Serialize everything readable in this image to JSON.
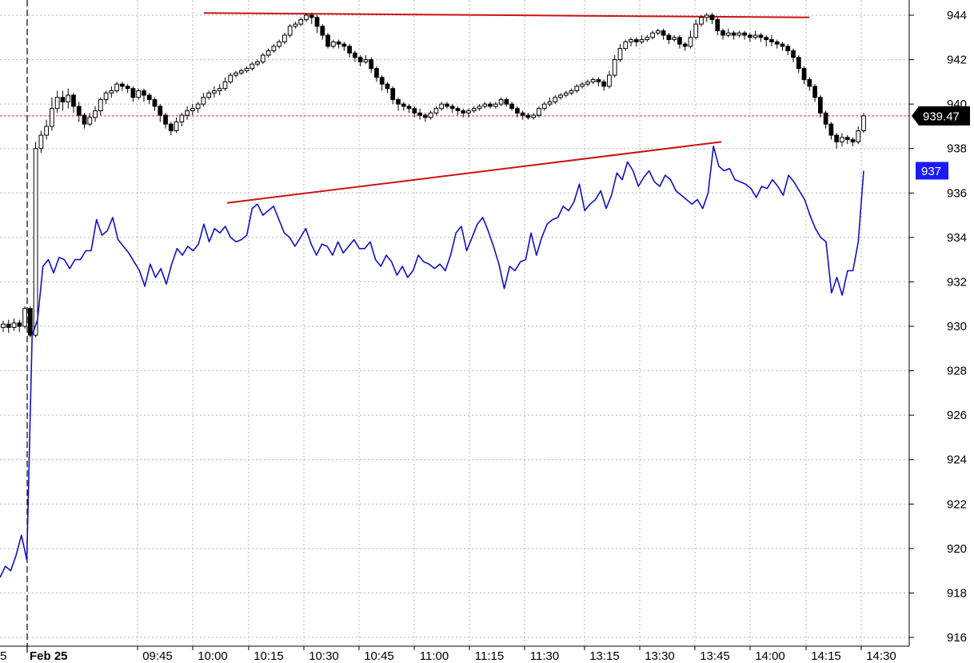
{
  "chart_data": {
    "type": "line",
    "y_axis": {
      "ticks": [
        "944",
        "942",
        "940",
        "938",
        "936",
        "934",
        "932",
        "930",
        "928",
        "926",
        "924",
        "922",
        "920",
        "918",
        "916"
      ],
      "range": [
        915.2,
        945.2
      ]
    },
    "x_axis": {
      "partial_label": "5",
      "date_label": "Feb 25",
      "ticks": [
        "09:45",
        "10:00",
        "10:15",
        "10:30",
        "10:45",
        "11:00",
        "11:15",
        "11:30",
        "13:15",
        "13:30",
        "13:45",
        "14:00",
        "14:15",
        "14:30"
      ]
    },
    "last_price_label": "939.47",
    "last_price": 939.47,
    "series_value_label": "937",
    "colors": {
      "candles": "#000000",
      "blue_series": "#1010c8",
      "trendlines": "#d01010",
      "price_line": "#e03030",
      "blue_badge": "#1a1aff",
      "price_badge": "#000000"
    },
    "trendlines": [
      {
        "start": [
          10.0,
          944.1
        ],
        "end": [
          24.5,
          943.9
        ]
      },
      {
        "start": [
          10.1,
          935.55
        ],
        "end": [
          20.0,
          938.3
        ]
      }
    ],
    "candles": [
      [
        929.95,
        930.1,
        929.75,
        930.25
      ],
      [
        930.1,
        929.95,
        929.7,
        930.3
      ],
      [
        929.95,
        930.15,
        929.8,
        930.35
      ],
      [
        930.15,
        930.0,
        929.75,
        930.3
      ],
      [
        930.0,
        930.8,
        929.9,
        930.9
      ],
      [
        930.8,
        929.6,
        929.5,
        930.9
      ],
      [
        929.6,
        938.0,
        929.5,
        938.3
      ],
      [
        938.0,
        938.6,
        937.8,
        938.8
      ],
      [
        938.6,
        939.0,
        938.4,
        939.3
      ],
      [
        939.0,
        939.8,
        938.8,
        940.3
      ],
      [
        939.8,
        940.3,
        939.6,
        940.6
      ],
      [
        940.3,
        940.1,
        939.7,
        940.6
      ],
      [
        940.1,
        940.4,
        939.8,
        940.7
      ],
      [
        940.4,
        939.9,
        939.6,
        940.5
      ],
      [
        939.9,
        939.5,
        939.2,
        940.1
      ],
      [
        939.5,
        939.1,
        938.9,
        939.6
      ],
      [
        939.1,
        939.4,
        939.0,
        939.6
      ],
      [
        939.4,
        939.7,
        939.2,
        939.9
      ],
      [
        939.7,
        940.2,
        939.5,
        940.3
      ],
      [
        940.2,
        940.5,
        940.0,
        940.6
      ],
      [
        940.5,
        940.6,
        940.3,
        940.8
      ],
      [
        940.6,
        940.9,
        940.5,
        941.0
      ],
      [
        940.9,
        940.8,
        940.6,
        941.0
      ],
      [
        940.8,
        940.7,
        940.5,
        940.9
      ],
      [
        940.7,
        940.3,
        940.1,
        940.8
      ],
      [
        940.3,
        940.6,
        940.2,
        940.7
      ],
      [
        940.6,
        940.4,
        940.1,
        940.7
      ],
      [
        940.4,
        940.2,
        940.0,
        940.5
      ],
      [
        940.2,
        939.9,
        939.7,
        940.3
      ],
      [
        939.9,
        939.5,
        939.2,
        940.0
      ],
      [
        939.5,
        939.1,
        938.9,
        939.6
      ],
      [
        939.1,
        938.8,
        938.6,
        939.2
      ],
      [
        938.8,
        939.2,
        938.7,
        939.4
      ],
      [
        939.2,
        939.5,
        939.0,
        939.6
      ],
      [
        939.5,
        939.7,
        939.3,
        939.9
      ],
      [
        939.7,
        939.8,
        939.5,
        940.0
      ],
      [
        939.8,
        940.0,
        939.6,
        940.1
      ],
      [
        940.0,
        940.3,
        939.9,
        940.5
      ],
      [
        940.3,
        940.5,
        940.2,
        940.6
      ],
      [
        940.5,
        940.6,
        940.3,
        940.8
      ],
      [
        940.6,
        940.7,
        940.4,
        940.9
      ],
      [
        940.7,
        941.0,
        940.6,
        941.2
      ],
      [
        941.0,
        941.3,
        940.9,
        941.4
      ],
      [
        941.3,
        941.4,
        941.2,
        941.5
      ],
      [
        941.4,
        941.5,
        941.3,
        941.6
      ],
      [
        941.5,
        941.6,
        941.4,
        941.7
      ],
      [
        941.6,
        941.8,
        941.5,
        941.9
      ],
      [
        941.8,
        941.9,
        941.7,
        942.0
      ],
      [
        941.9,
        942.2,
        941.8,
        942.3
      ],
      [
        942.2,
        942.4,
        942.1,
        942.5
      ],
      [
        942.4,
        942.6,
        942.3,
        942.7
      ],
      [
        942.6,
        942.8,
        942.5,
        942.9
      ],
      [
        942.8,
        943.1,
        942.7,
        943.2
      ],
      [
        943.1,
        943.5,
        943.0,
        943.6
      ],
      [
        943.5,
        943.6,
        943.4,
        943.7
      ],
      [
        943.6,
        943.8,
        943.5,
        943.9
      ],
      [
        943.8,
        944.0,
        943.7,
        944.1
      ],
      [
        944.0,
        943.9,
        943.6,
        944.1
      ],
      [
        943.9,
        943.5,
        943.2,
        944.0
      ],
      [
        943.5,
        943.1,
        942.9,
        943.6
      ],
      [
        943.1,
        942.6,
        942.5,
        943.2
      ],
      [
        942.6,
        942.8,
        942.5,
        942.9
      ],
      [
        942.8,
        942.7,
        942.5,
        942.9
      ],
      [
        942.7,
        942.6,
        942.4,
        942.8
      ],
      [
        942.6,
        942.3,
        942.1,
        942.7
      ],
      [
        942.3,
        942.1,
        941.9,
        942.4
      ],
      [
        942.1,
        941.9,
        941.7,
        942.2
      ],
      [
        941.9,
        942.0,
        941.8,
        942.2
      ],
      [
        942.0,
        941.6,
        941.4,
        942.1
      ],
      [
        941.6,
        941.2,
        941.0,
        941.7
      ],
      [
        941.2,
        940.9,
        940.6,
        941.3
      ],
      [
        940.9,
        940.7,
        940.5,
        941.0
      ],
      [
        940.7,
        940.2,
        940.0,
        940.8
      ],
      [
        940.2,
        940.0,
        939.7,
        940.3
      ],
      [
        940.0,
        939.9,
        939.7,
        940.1
      ],
      [
        939.9,
        939.8,
        939.6,
        940.0
      ],
      [
        939.8,
        939.6,
        939.4,
        939.9
      ],
      [
        939.6,
        939.5,
        939.3,
        939.8
      ],
      [
        939.5,
        939.4,
        939.2,
        939.6
      ],
      [
        939.4,
        939.6,
        939.3,
        939.7
      ],
      [
        939.6,
        939.8,
        939.5,
        939.9
      ],
      [
        939.8,
        940.0,
        939.7,
        940.1
      ],
      [
        940.0,
        939.9,
        939.8,
        940.1
      ],
      [
        939.9,
        939.8,
        939.6,
        940.0
      ],
      [
        939.8,
        939.7,
        939.5,
        939.9
      ],
      [
        939.7,
        939.6,
        939.4,
        939.8
      ],
      [
        939.6,
        939.7,
        939.4,
        939.8
      ],
      [
        939.7,
        939.8,
        939.6,
        939.9
      ],
      [
        939.8,
        939.9,
        939.7,
        940.0
      ],
      [
        939.9,
        940.0,
        939.8,
        940.1
      ],
      [
        940.0,
        939.9,
        939.8,
        940.1
      ],
      [
        939.9,
        940.0,
        939.8,
        940.1
      ],
      [
        940.0,
        940.2,
        939.9,
        940.3
      ],
      [
        940.2,
        940.0,
        939.9,
        940.3
      ],
      [
        940.0,
        939.8,
        939.7,
        940.1
      ],
      [
        939.8,
        939.6,
        939.4,
        939.9
      ],
      [
        939.6,
        939.5,
        939.3,
        939.7
      ],
      [
        939.5,
        939.4,
        939.3,
        939.6
      ],
      [
        939.4,
        939.5,
        939.3,
        939.6
      ],
      [
        939.5,
        939.8,
        939.4,
        939.9
      ],
      [
        939.8,
        940.0,
        939.7,
        940.1
      ],
      [
        940.0,
        940.1,
        939.9,
        940.3
      ],
      [
        940.1,
        940.3,
        940.0,
        940.4
      ],
      [
        940.3,
        940.4,
        940.2,
        940.5
      ],
      [
        940.4,
        940.5,
        940.3,
        940.6
      ],
      [
        940.5,
        940.6,
        940.4,
        940.7
      ],
      [
        940.6,
        940.8,
        940.5,
        940.9
      ],
      [
        940.8,
        940.9,
        940.7,
        941.0
      ],
      [
        940.9,
        941.0,
        940.8,
        941.1
      ],
      [
        941.0,
        941.1,
        940.9,
        941.2
      ],
      [
        941.1,
        941.0,
        940.8,
        941.2
      ],
      [
        941.0,
        940.8,
        940.6,
        941.1
      ],
      [
        940.8,
        941.3,
        940.7,
        941.5
      ],
      [
        941.3,
        942.0,
        941.2,
        942.2
      ],
      [
        942.0,
        942.5,
        941.9,
        942.7
      ],
      [
        942.5,
        942.8,
        942.4,
        942.9
      ],
      [
        942.8,
        942.9,
        942.6,
        943.0
      ],
      [
        942.9,
        942.8,
        942.6,
        943.0
      ],
      [
        942.8,
        942.9,
        942.7,
        943.1
      ],
      [
        942.9,
        943.0,
        942.8,
        943.1
      ],
      [
        943.0,
        943.2,
        942.9,
        943.3
      ],
      [
        943.2,
        943.3,
        943.1,
        943.4
      ],
      [
        943.3,
        943.1,
        942.9,
        943.4
      ],
      [
        943.1,
        942.9,
        942.7,
        943.2
      ],
      [
        942.9,
        943.0,
        942.8,
        943.1
      ],
      [
        943.0,
        942.7,
        942.5,
        943.1
      ],
      [
        942.7,
        942.6,
        942.4,
        942.8
      ],
      [
        942.6,
        943.0,
        942.5,
        943.3
      ],
      [
        943.0,
        943.6,
        942.9,
        943.8
      ],
      [
        943.6,
        943.9,
        943.5,
        944.0
      ],
      [
        943.9,
        944.0,
        943.7,
        944.1
      ],
      [
        944.0,
        943.8,
        943.6,
        944.1
      ],
      [
        943.8,
        943.3,
        943.1,
        943.9
      ],
      [
        943.3,
        943.1,
        942.9,
        943.4
      ],
      [
        943.1,
        943.2,
        943.0,
        943.4
      ],
      [
        943.2,
        943.1,
        942.9,
        943.3
      ],
      [
        943.1,
        943.2,
        943.0,
        943.3
      ],
      [
        943.2,
        943.1,
        942.9,
        943.3
      ],
      [
        943.1,
        943.0,
        942.8,
        943.2
      ],
      [
        943.0,
        943.1,
        942.9,
        943.3
      ],
      [
        943.1,
        943.0,
        942.8,
        943.2
      ],
      [
        943.0,
        942.9,
        942.6,
        943.1
      ],
      [
        942.9,
        942.8,
        942.6,
        943.1
      ],
      [
        942.8,
        942.7,
        942.5,
        942.9
      ],
      [
        942.7,
        942.6,
        942.4,
        942.8
      ],
      [
        942.6,
        942.4,
        942.2,
        942.7
      ],
      [
        942.4,
        942.1,
        941.9,
        942.5
      ],
      [
        942.1,
        941.6,
        941.4,
        942.2
      ],
      [
        941.6,
        941.1,
        940.9,
        941.7
      ],
      [
        941.1,
        940.8,
        940.6,
        941.2
      ],
      [
        940.8,
        940.3,
        940.1,
        940.9
      ],
      [
        940.3,
        939.6,
        939.4,
        940.4
      ],
      [
        939.6,
        939.1,
        938.9,
        939.7
      ],
      [
        939.1,
        938.6,
        938.4,
        939.2
      ],
      [
        938.6,
        938.3,
        938.0,
        938.7
      ],
      [
        938.3,
        938.5,
        938.1,
        938.7
      ],
      [
        938.5,
        938.4,
        938.2,
        938.6
      ],
      [
        938.4,
        938.3,
        938.1,
        938.5
      ],
      [
        938.3,
        938.8,
        938.2,
        939.0
      ],
      [
        938.8,
        939.47,
        938.7,
        939.6
      ]
    ],
    "blue_series": [
      918.7,
      919.2,
      919.0,
      919.7,
      920.6,
      919.5,
      929.6,
      930.3,
      932.7,
      933.0,
      932.4,
      933.1,
      933.0,
      932.6,
      933.0,
      933.0,
      933.4,
      933.4,
      934.8,
      934.1,
      934.3,
      934.9,
      933.9,
      933.6,
      933.3,
      932.9,
      932.5,
      931.8,
      932.8,
      932.2,
      932.6,
      931.9,
      932.8,
      933.5,
      933.2,
      933.6,
      933.4,
      933.7,
      934.6,
      933.8,
      934.4,
      934.2,
      934.5,
      934.0,
      933.8,
      933.9,
      934.1,
      935.3,
      935.5,
      935.0,
      935.2,
      935.4,
      934.8,
      934.2,
      934.0,
      933.6,
      934.0,
      934.4,
      933.7,
      933.2,
      933.7,
      933.6,
      933.2,
      933.8,
      933.3,
      933.6,
      933.9,
      933.5,
      933.5,
      933.8,
      933.0,
      932.7,
      933.2,
      932.9,
      932.3,
      932.7,
      932.2,
      932.5,
      933.2,
      932.9,
      932.8,
      932.6,
      932.8,
      932.5,
      933.2,
      934.2,
      934.5,
      933.4,
      934.0,
      934.6,
      934.9,
      934.3,
      933.6,
      932.8,
      931.7,
      932.7,
      932.5,
      932.9,
      933.0,
      934.2,
      933.2,
      934.0,
      934.6,
      934.8,
      934.9,
      935.4,
      935.2,
      935.6,
      936.4,
      935.2,
      935.5,
      935.7,
      936.1,
      935.3,
      935.9,
      936.9,
      936.6,
      937.4,
      937.0,
      936.3,
      936.7,
      937.0,
      936.5,
      936.3,
      936.8,
      936.6,
      936.1,
      935.9,
      935.7,
      935.5,
      935.7,
      935.3,
      936.0,
      938.1,
      937.2,
      937.0,
      937.1,
      936.6,
      936.5,
      936.4,
      936.2,
      935.8,
      936.3,
      936.2,
      936.6,
      936.3,
      935.9,
      936.8,
      936.5,
      936.1,
      935.7,
      935.0,
      934.4,
      934.0,
      933.8,
      931.5,
      932.2,
      931.4,
      932.5,
      932.5,
      933.8,
      937.0
    ]
  }
}
